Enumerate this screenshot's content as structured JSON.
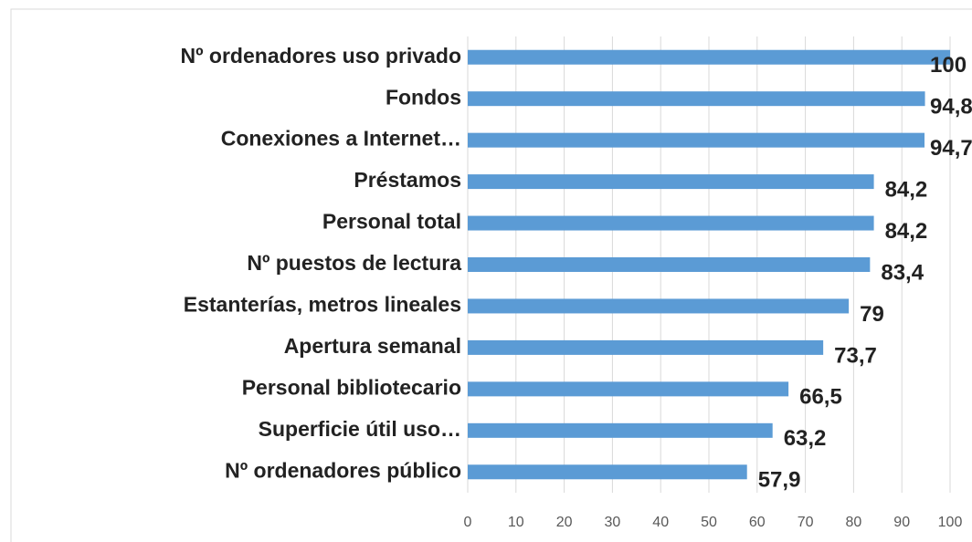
{
  "chart_data": {
    "type": "bar",
    "orientation": "horizontal",
    "categories": [
      "Nº ordenadores uso privado",
      "Fondos",
      "Conexiones a Internet…",
      "Préstamos",
      "Personal total",
      "Nº puestos de lectura",
      "Estanterías, metros lineales",
      "Apertura semanal",
      "Personal bibliotecario",
      "Superficie útil uso…",
      "Nº ordenadores público"
    ],
    "values": [
      100,
      94.8,
      94.7,
      84.2,
      84.2,
      83.4,
      79,
      73.7,
      66.5,
      63.2,
      57.9
    ],
    "value_labels": [
      "100",
      "94,8",
      "94,7",
      "84,2",
      "84,2",
      "83,4",
      "79",
      "73,7",
      "66,5",
      "63,2",
      "57,9"
    ],
    "color": "#5b9bd5",
    "xlim": [
      0,
      100
    ],
    "xticks": [
      0,
      10,
      20,
      30,
      40,
      50,
      60,
      70,
      80,
      90,
      100
    ],
    "grid": true
  }
}
